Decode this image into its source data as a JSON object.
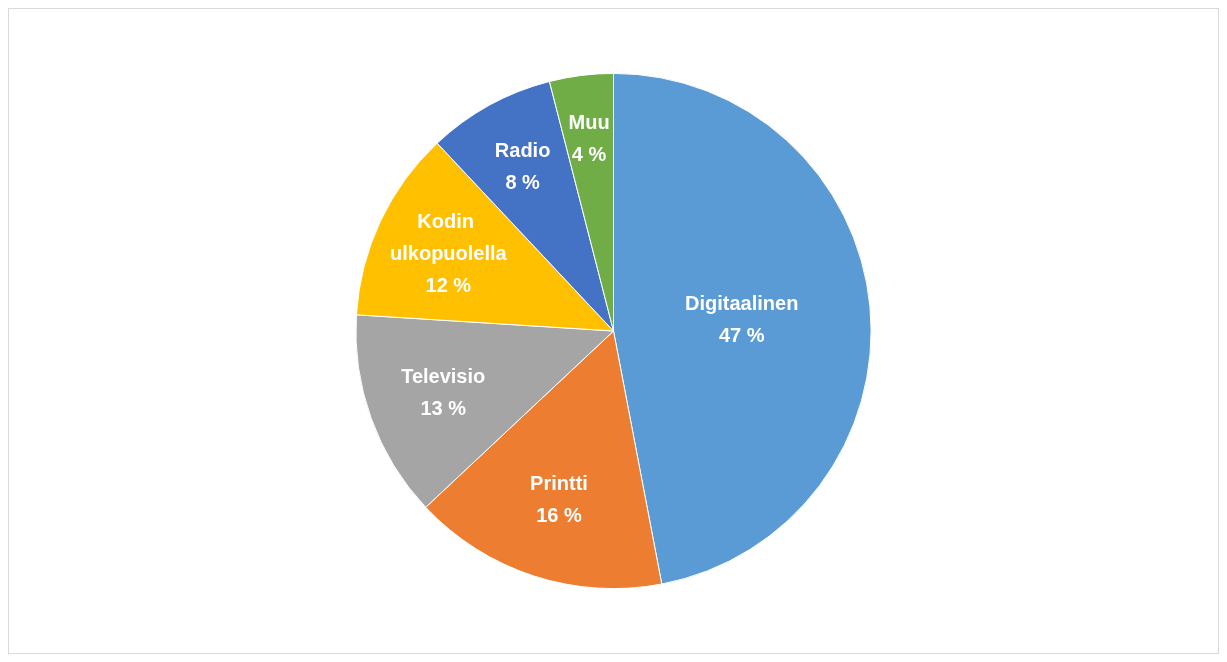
{
  "chart_data": {
    "type": "pie",
    "categories": [
      "Digitaalinen",
      "Printti",
      "Televisio",
      "Kodin ulkopuolella",
      "Radio",
      "Muu"
    ],
    "values": [
      47,
      16,
      13,
      12,
      8,
      4
    ],
    "colors": [
      "#5b9bd5",
      "#ed7d31",
      "#a5a5a5",
      "#ffc000",
      "#4472c4",
      "#70ad47"
    ],
    "value_labels": [
      "47 %",
      "16 %",
      "13 %",
      "12 %",
      "8 %",
      "4 %"
    ]
  }
}
